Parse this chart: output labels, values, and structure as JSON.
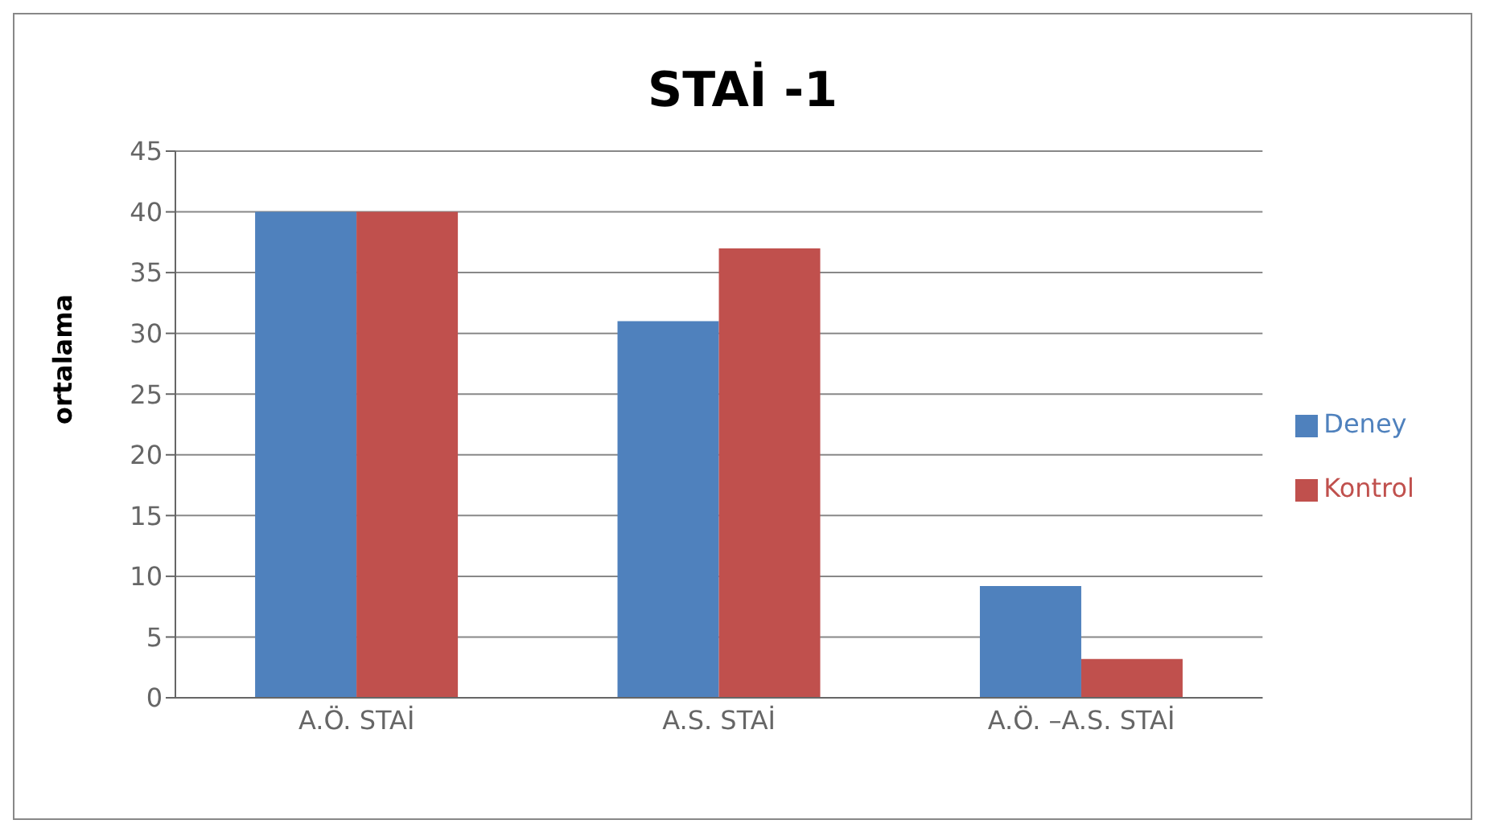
{
  "chart_data": {
    "type": "bar",
    "title": "STAİ -1",
    "ylabel": "ortalama",
    "categories": [
      "A.Ö. STAİ",
      "A.S. STAİ",
      "A.Ö. –A.S. STAİ"
    ],
    "series": [
      {
        "name": "Deney",
        "color": "#4f81bd",
        "values": [
          40,
          31,
          9.2
        ]
      },
      {
        "name": "Kontrol",
        "color": "#c0504d",
        "values": [
          40,
          37,
          3.2
        ]
      }
    ],
    "ylim": [
      0,
      45
    ],
    "yticks": [
      0,
      5,
      10,
      15,
      20,
      25,
      30,
      35,
      40,
      45
    ],
    "grid": "y",
    "legend": "right"
  }
}
